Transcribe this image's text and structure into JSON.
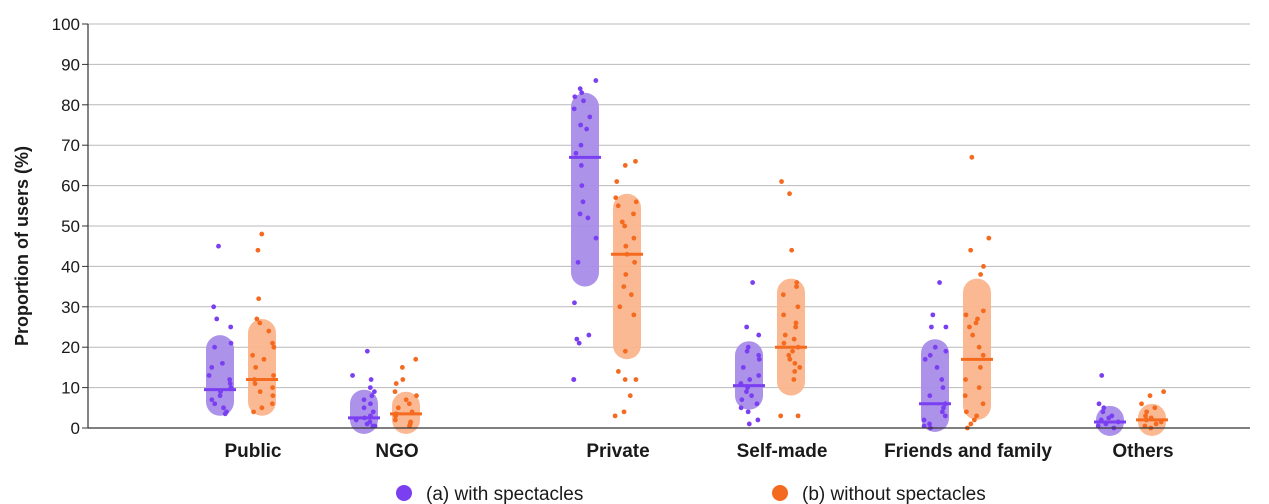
{
  "chart_data": {
    "type": "scatter",
    "ylabel": "Proportion of users (%)",
    "ylim": [
      0,
      100
    ],
    "yticks": [
      "0",
      "10",
      "20",
      "30",
      "40",
      "50",
      "60",
      "70",
      "80",
      "90",
      "100"
    ],
    "grid": true,
    "legend_position": "bottom",
    "categories": [
      "Public",
      "NGO",
      "Private",
      "Self-made",
      "Friends and family",
      "Others"
    ],
    "series": [
      {
        "name": "(a) with spectacles",
        "color": "#7b3ff2",
        "band_color": "#a98ce8",
        "medians": [
          9.5,
          2.5,
          67,
          10.5,
          6,
          1.5
        ],
        "q1": [
          5,
          0.5,
          37,
          6.5,
          1,
          0
        ],
        "q3": [
          21,
          7.5,
          81,
          19.5,
          20,
          3.5
        ],
        "points": [
          [
            45,
            30,
            27,
            25,
            21,
            20,
            16,
            15,
            13,
            12,
            11,
            10,
            9,
            8,
            7,
            6,
            5,
            4,
            3.5
          ],
          [
            19,
            13,
            12,
            10,
            9,
            8,
            7,
            6,
            5,
            4,
            3,
            2.5,
            2,
            1.5,
            1,
            0.5,
            0.5
          ],
          [
            86,
            84,
            83,
            82,
            81,
            79,
            77,
            75,
            74,
            70,
            68,
            65,
            60,
            56,
            53,
            52,
            47,
            41,
            31,
            23,
            22,
            21,
            12,
            12
          ],
          [
            36,
            25,
            23,
            20,
            19,
            18,
            17,
            15,
            13,
            12,
            11,
            10,
            9,
            8,
            7,
            6,
            5,
            4,
            2,
            1
          ],
          [
            36,
            28,
            25,
            25,
            20,
            19,
            18,
            17,
            15,
            12,
            10,
            8,
            6,
            5,
            4,
            3,
            2,
            1,
            0.5,
            0
          ],
          [
            13,
            6,
            5,
            4,
            3,
            2.5,
            2,
            1.5,
            1,
            0.5,
            0
          ]
        ]
      },
      {
        "name": "(b) without spectacles",
        "color": "#f46a1f",
        "band_color": "#fbb58d",
        "medians": [
          12,
          3.5,
          43,
          20,
          17,
          2
        ],
        "q1": [
          5,
          0.5,
          19,
          10,
          4,
          0
        ],
        "q3": [
          25,
          7,
          56,
          35,
          35,
          4
        ],
        "points": [
          [
            48,
            44,
            32,
            27,
            26,
            24,
            21,
            20,
            18,
            17,
            15,
            13,
            12,
            11,
            10,
            9,
            8,
            6,
            5,
            4
          ],
          [
            17,
            15,
            12,
            11,
            9,
            8,
            7,
            6,
            5,
            4,
            3.5,
            3,
            2,
            1.5,
            1,
            0.5
          ],
          [
            66,
            65,
            61,
            57,
            56,
            55,
            53,
            51,
            50,
            47,
            45,
            43,
            41,
            38,
            35,
            33,
            30,
            28,
            19,
            14,
            12,
            12,
            8,
            4,
            3
          ],
          [
            61,
            58,
            44,
            36,
            35,
            33,
            30,
            28,
            26,
            25,
            23,
            22,
            21,
            20,
            19,
            18,
            17,
            16,
            15,
            14,
            12,
            3,
            3
          ],
          [
            67,
            47,
            44,
            40,
            38,
            29,
            28,
            27,
            26,
            25,
            23,
            20,
            18,
            15,
            12,
            10,
            8,
            6,
            4,
            3,
            2,
            1,
            0
          ],
          [
            9,
            8,
            6,
            5,
            4,
            3,
            2.5,
            2,
            1.5,
            1,
            0.5,
            0
          ]
        ]
      }
    ]
  }
}
